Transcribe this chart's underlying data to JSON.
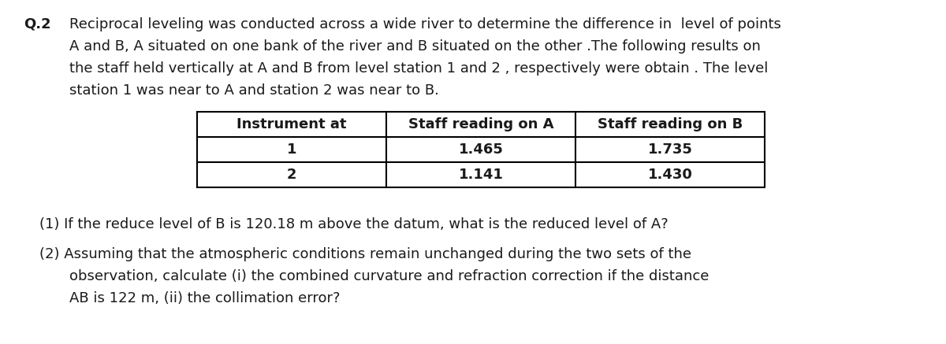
{
  "bg_color": "#ffffff",
  "text_color": "#1a1a1a",
  "fig_width": 12.0,
  "fig_height": 4.37,
  "q_label": "Q.2",
  "para_line1": "Reciprocal leveling was conducted across a wide river to determine the difference in  level of points",
  "para_line2": "A and B, A situated on one bank of the river and B situated on the other .The following results on",
  "para_line3": "the staff held vertically at A and B from level station 1 and 2 , respectively were obtain . The level",
  "para_line4": "station 1 was near to A and station 2 was near to B.",
  "table_headers": [
    "Instrument at",
    "Staff reading on A",
    "Staff reading on B"
  ],
  "table_rows": [
    [
      "1",
      "1.465",
      "1.735"
    ],
    [
      "2",
      "1.141",
      "1.430"
    ]
  ],
  "question1": "(1) If the reduce level of B is 120.18 m above the datum, what is the reduced level of A?",
  "question2_line1": "(2) Assuming that the atmospheric conditions remain unchanged during the two sets of the",
  "question2_line2": "observation, calculate (i) the combined curvature and refraction correction if the distance",
  "question2_line3": "AB is 122 m, (ii) the collimation error?",
  "font_size_main": 13.0,
  "font_size_table": 13.0
}
